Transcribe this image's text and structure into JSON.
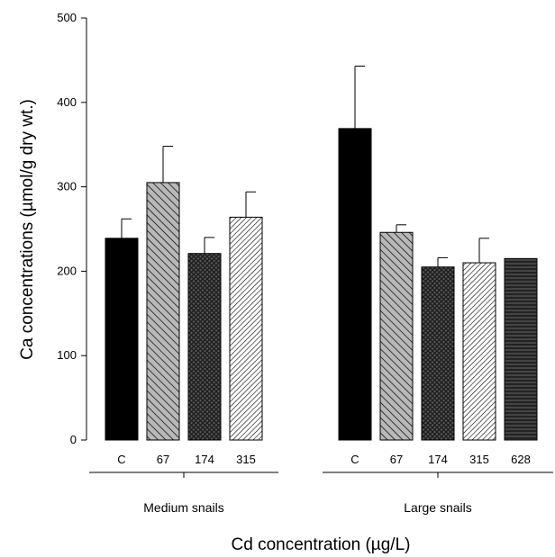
{
  "chart_data": {
    "type": "bar",
    "ylabel": "Ca concentrations (µmol/g dry wt.)",
    "xlabel": "Cd concentration (µg/L)",
    "ylim": [
      0,
      500
    ],
    "yticks": [
      0,
      100,
      200,
      300,
      400,
      500
    ],
    "groups": [
      {
        "name": "Medium snails",
        "categories": [
          "C",
          "67",
          "174",
          "315"
        ],
        "values": [
          239,
          305,
          221,
          264
        ],
        "errors": [
          23,
          43,
          19,
          30
        ],
        "patterns": [
          "solid",
          "diag-gray",
          "crosshatch",
          "diag-fine"
        ]
      },
      {
        "name": "Large snails",
        "categories": [
          "C",
          "67",
          "174",
          "315",
          "628"
        ],
        "values": [
          369,
          246,
          205,
          210,
          215
        ],
        "errors": [
          74,
          9,
          11,
          29,
          0
        ],
        "patterns": [
          "solid",
          "diag-gray",
          "crosshatch",
          "diag-fine",
          "horizontal"
        ]
      }
    ]
  }
}
